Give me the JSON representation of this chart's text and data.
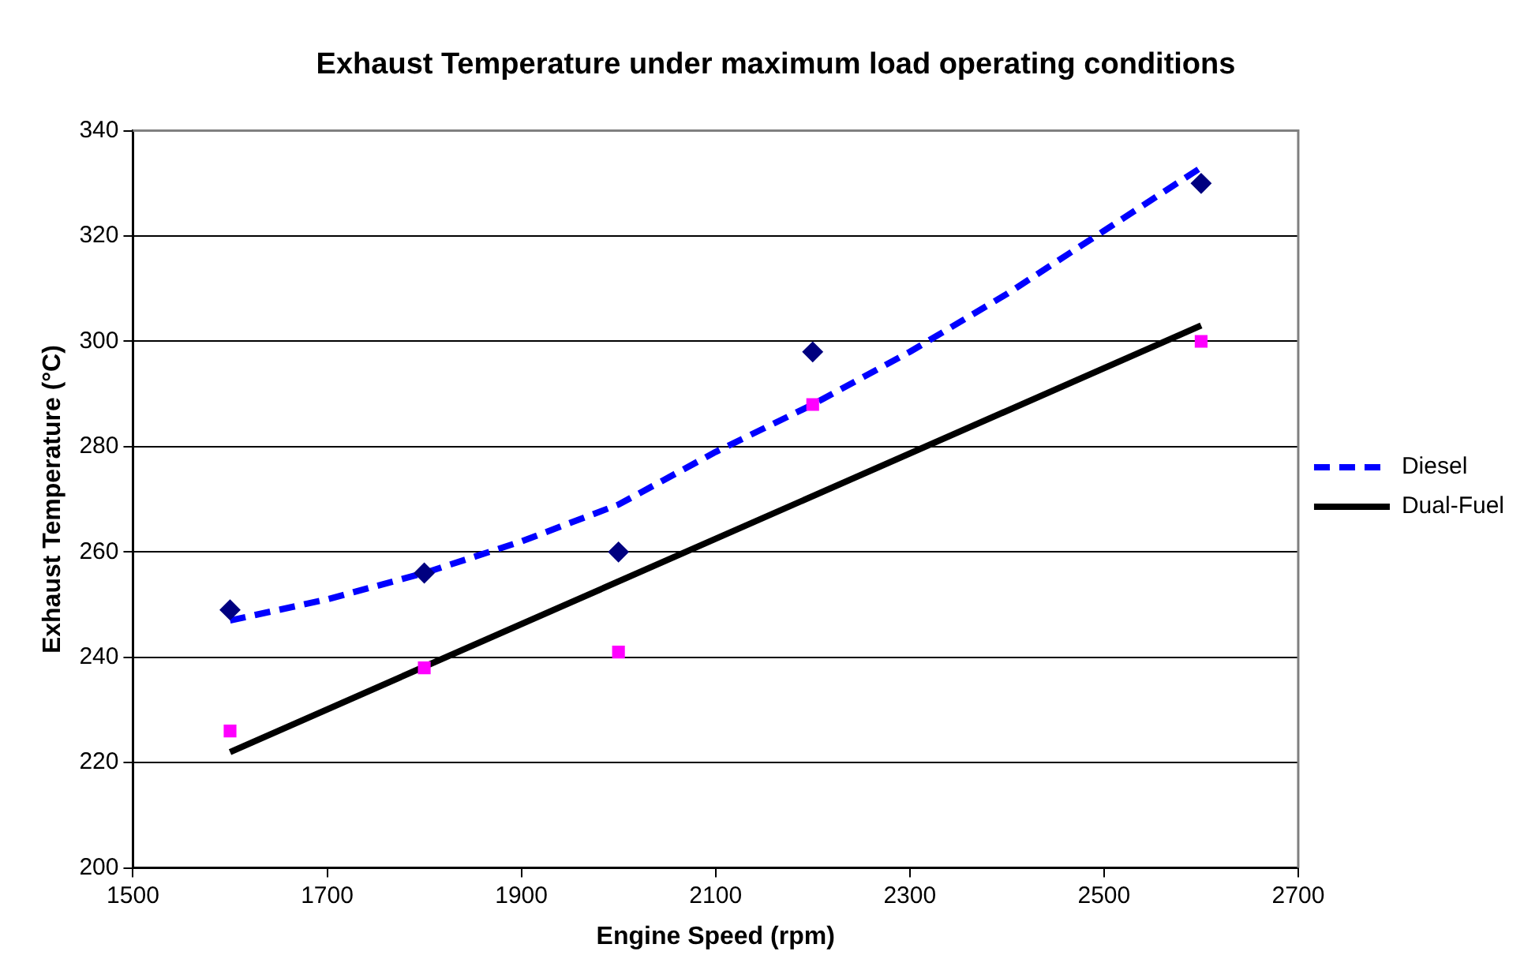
{
  "chart_data": {
    "type": "scatter",
    "title": "Exhaust Temperature under maximum load operating conditions",
    "xlabel": "Engine Speed (rpm)",
    "ylabel": "Exhaust Temperature (°C)",
    "xlim": [
      1500,
      2700
    ],
    "xticks": [
      1500,
      1700,
      1900,
      2100,
      2300,
      2500,
      2700
    ],
    "ylim": [
      200,
      340
    ],
    "yticks": [
      200,
      220,
      240,
      260,
      280,
      300,
      320,
      340
    ],
    "grid": "y",
    "legend": "right",
    "series": [
      {
        "marker": "diamond",
        "color": "#000080",
        "x": [
          1600,
          1800,
          2000,
          2200,
          2600
        ],
        "values": [
          249,
          256,
          260,
          298,
          330
        ]
      },
      {
        "marker": "square",
        "color": "#ff00ff",
        "x": [
          1600,
          1800,
          2000,
          2200,
          2600
        ],
        "values": [
          226,
          238,
          241,
          288,
          300
        ]
      },
      {
        "type": "line",
        "name": "Diesel",
        "line_style": "dashed",
        "marker": "none",
        "color": "#0000ff",
        "x": [
          1600,
          1700,
          1800,
          1900,
          2000,
          2100,
          2200,
          2300,
          2400,
          2500,
          2600
        ],
        "values": [
          247,
          251,
          256,
          262,
          269,
          279,
          288,
          298,
          309,
          321,
          333
        ]
      },
      {
        "type": "line",
        "name": "Dual-Fuel",
        "line_style": "solid",
        "marker": "none",
        "color": "#000000",
        "x": [
          1600,
          2600
        ],
        "values": [
          222,
          303
        ]
      }
    ]
  }
}
